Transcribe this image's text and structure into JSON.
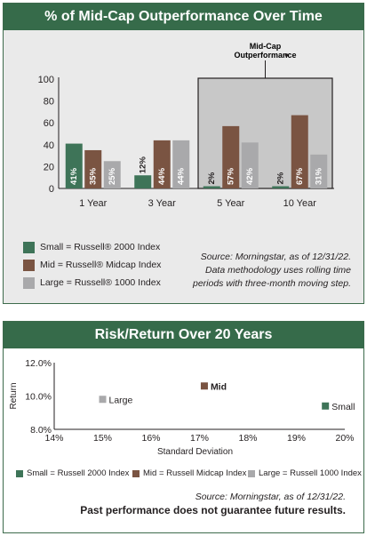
{
  "chart1": {
    "title": "% of Mid-Cap Outperformance Over Time",
    "highlight_label_line1": "Mid-Cap",
    "highlight_label_line2": "Outperformance",
    "legend": [
      {
        "label": "Small = Russell® 2000 Index",
        "color": "#3e7458"
      },
      {
        "label": "Mid = Russell® Midcap Index",
        "color": "#7a5442"
      },
      {
        "label": "Large = Russell® 1000 Index",
        "color": "#a9a9ab"
      }
    ],
    "source_line1": "Source: Morningstar, as of 12/31/22.",
    "source_line2": "Data methodology uses rolling time",
    "source_line3": "periods with three-month moving step."
  },
  "chart2": {
    "title": "Risk/Return Over 20 Years",
    "legend": [
      {
        "label": "Small = Russell 2000 Index",
        "color": "#3e7458"
      },
      {
        "label": "Mid = Russell Midcap Index",
        "color": "#7a5442"
      },
      {
        "label": "Large = Russell 1000 Index",
        "color": "#a9a9ab"
      }
    ],
    "source": "Source: Morningstar, as of 12/31/22.",
    "disclaimer": "Past performance does not guarantee future results."
  },
  "chart_data": [
    {
      "type": "bar",
      "title": "% of Mid-Cap Outperformance Over Time",
      "categories": [
        "1 Year",
        "3 Year",
        "5 Year",
        "10 Year"
      ],
      "series": [
        {
          "name": "Small = Russell® 2000 Index",
          "values": [
            41,
            12,
            2,
            2
          ],
          "labels": [
            "41%",
            "12%",
            "2%",
            "2%"
          ],
          "color": "#3e7458"
        },
        {
          "name": "Mid = Russell® Midcap Index",
          "values": [
            35,
            44,
            57,
            67
          ],
          "labels": [
            "35%",
            "44%",
            "57%",
            "67%"
          ],
          "color": "#7a5442"
        },
        {
          "name": "Large = Russell® 1000 Index",
          "values": [
            25,
            44,
            42,
            31
          ],
          "labels": [
            "25%",
            "44%",
            "42%",
            "31%"
          ],
          "color": "#a9a9ab"
        }
      ],
      "ylim": [
        0,
        100
      ],
      "yticks": [
        "0",
        "20",
        "40",
        "60",
        "80",
        "100"
      ],
      "highlight_categories": [
        "5 Year",
        "10 Year"
      ]
    },
    {
      "type": "scatter",
      "title": "Risk/Return Over 20 Years",
      "xlabel": "Standard Deviation",
      "ylabel": "Return",
      "xlim": [
        14,
        20
      ],
      "ylim": [
        8,
        12
      ],
      "xticks": [
        "14%",
        "15%",
        "16%",
        "17%",
        "18%",
        "19%",
        "20%"
      ],
      "yticks": [
        "8.0%",
        "10.0%",
        "12.0%"
      ],
      "points": [
        {
          "name": "Small",
          "x": 19.6,
          "y": 9.4,
          "color": "#3e7458",
          "bold": false
        },
        {
          "name": "Mid",
          "x": 17.1,
          "y": 10.6,
          "color": "#7a5442",
          "bold": true
        },
        {
          "name": "Large",
          "x": 15.0,
          "y": 9.8,
          "color": "#a9a9ab",
          "bold": false
        }
      ]
    }
  ]
}
